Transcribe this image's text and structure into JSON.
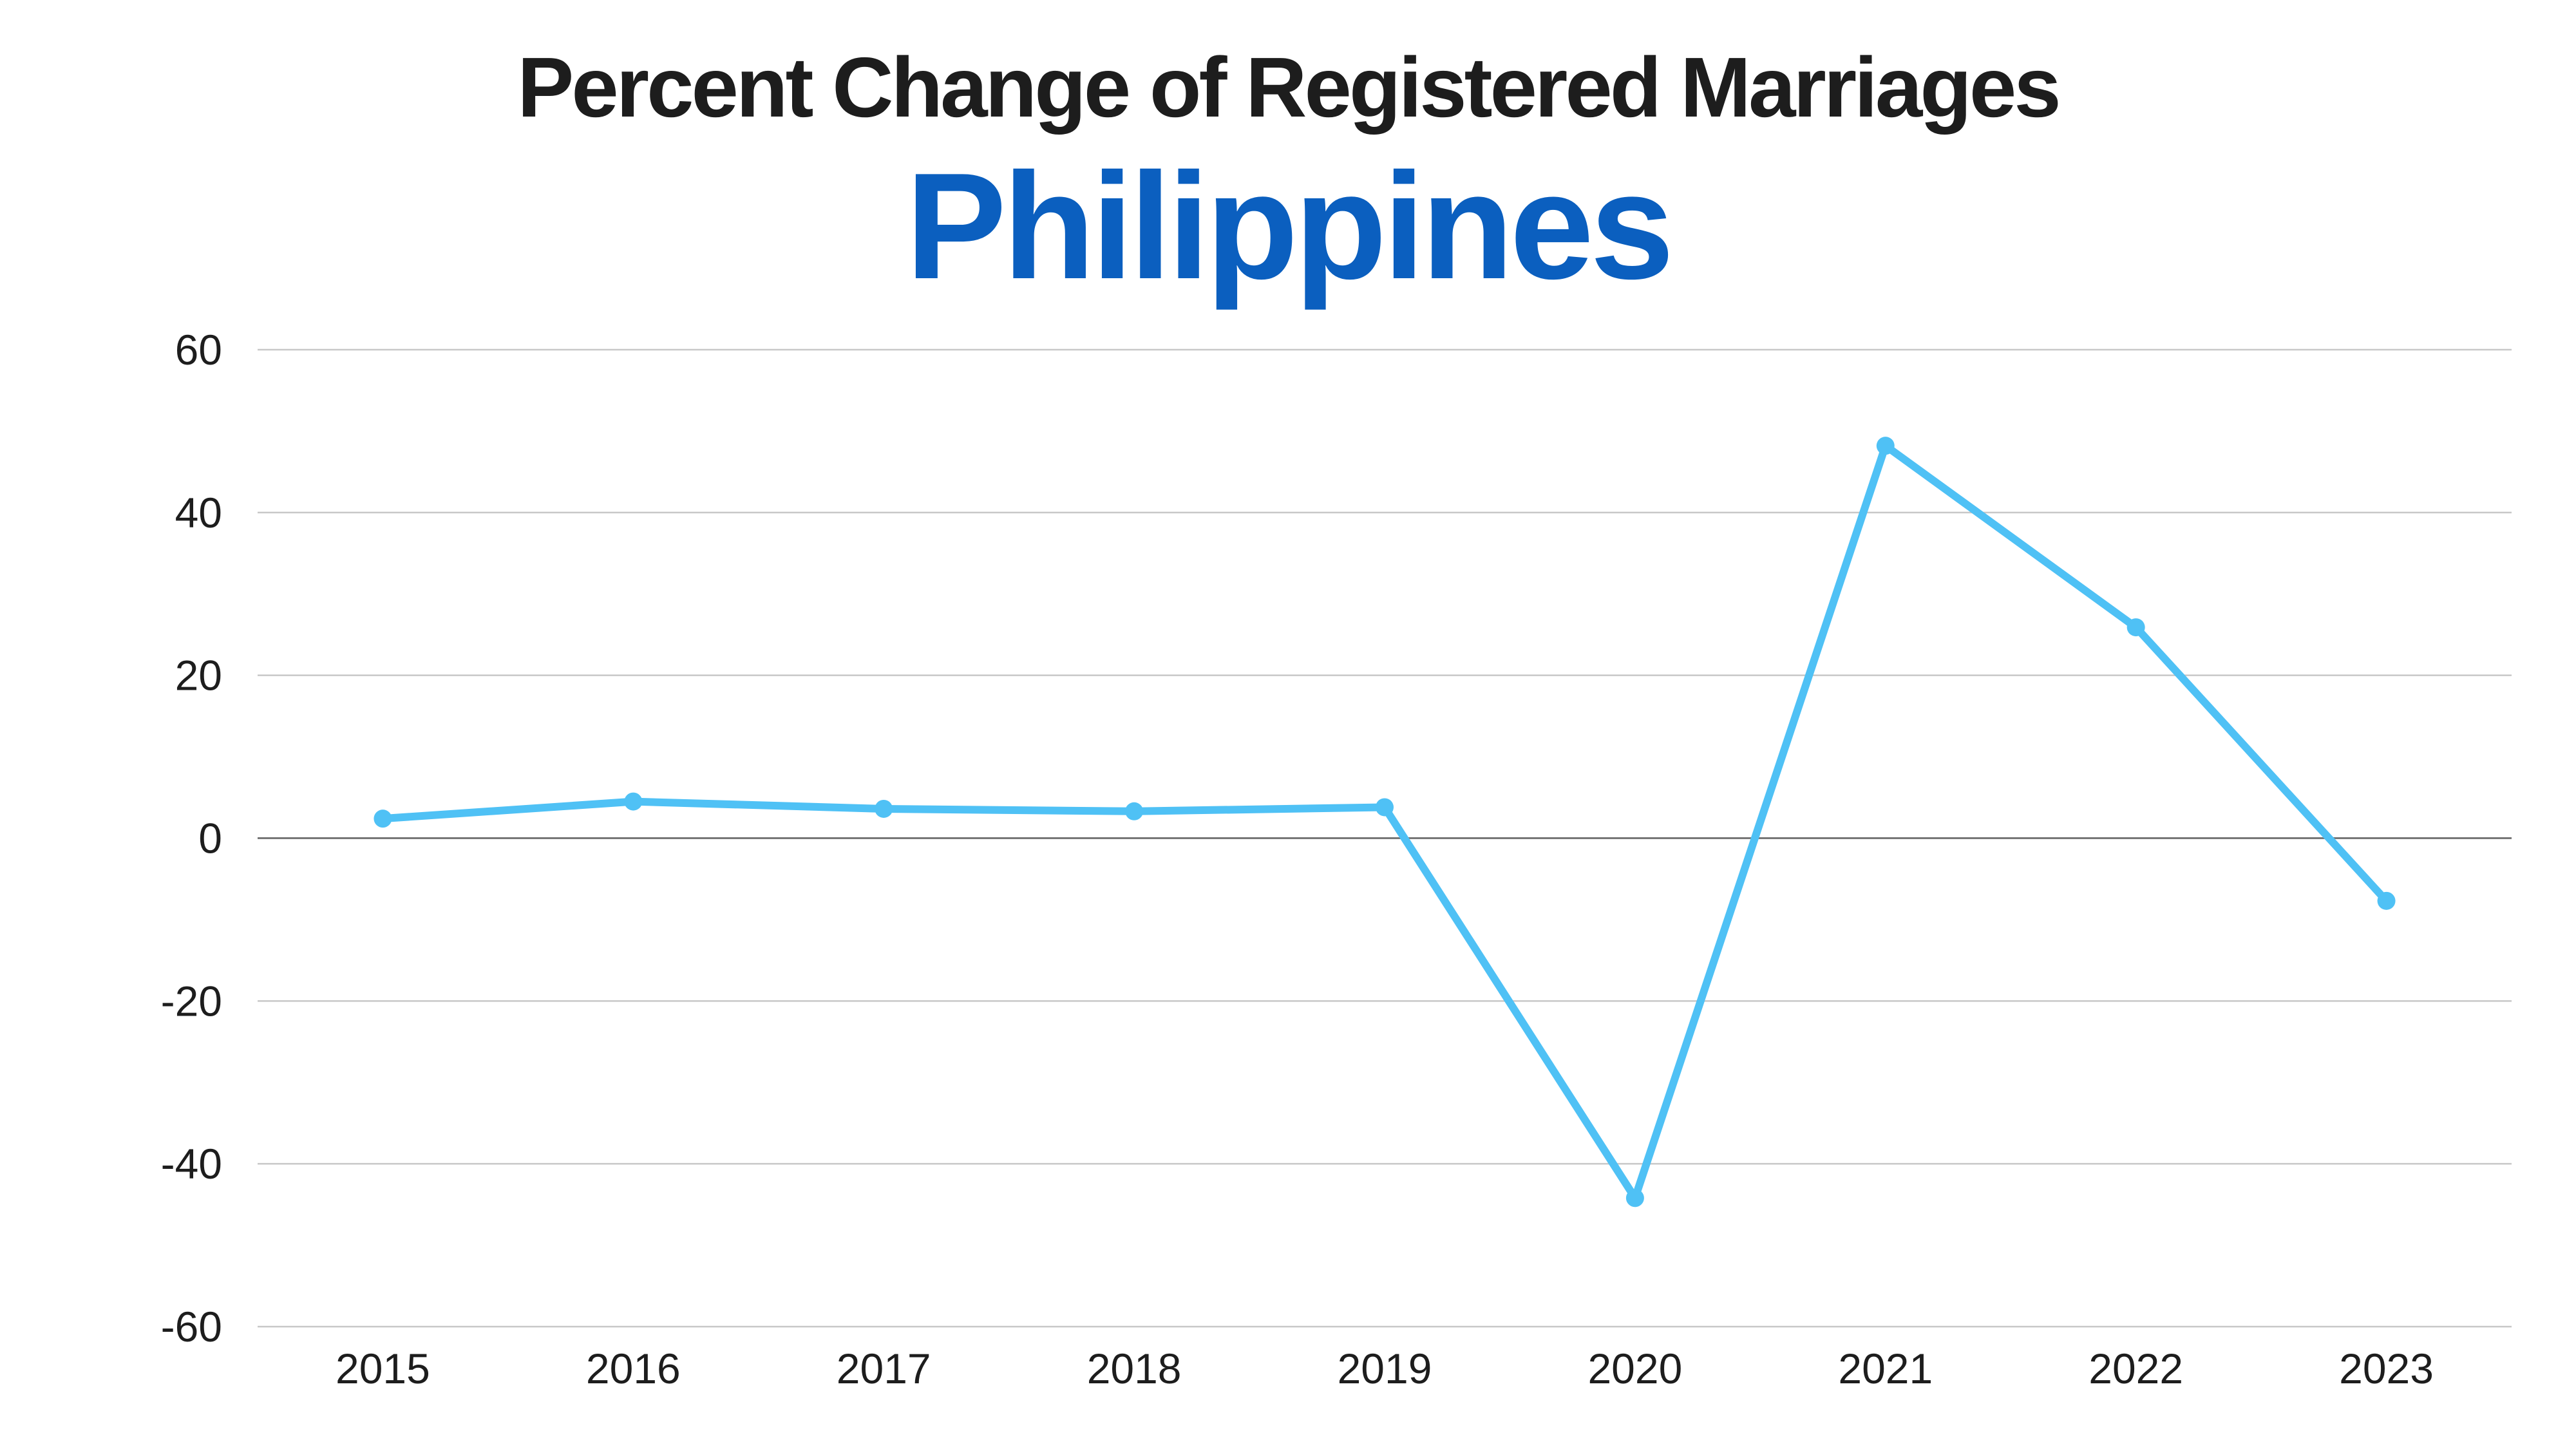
{
  "chart_data": {
    "type": "line",
    "title": "Percent Change of Registered Marriages",
    "subtitle": "Philippines",
    "xlabel": "",
    "ylabel": "",
    "categories": [
      "2015",
      "2016",
      "2017",
      "2018",
      "2019",
      "2020",
      "2021",
      "2022",
      "2023"
    ],
    "series": [
      {
        "name": "Percent Change",
        "values": [
          2.4,
          4.5,
          3.6,
          3.3,
          3.8,
          -44.2,
          48.2,
          25.9,
          -7.7
        ]
      }
    ],
    "ylim": [
      -60,
      60
    ],
    "yticks": [
      "60",
      "40",
      "20",
      "0",
      "-20",
      "-40",
      "-60"
    ],
    "grid": true,
    "legend": "none"
  },
  "colors": {
    "title": "#1d1d1d",
    "subtitle": "#0b5fbf",
    "line": "#4fc1f5",
    "grid": "#c8c8c8",
    "zero_line": "#777777"
  }
}
